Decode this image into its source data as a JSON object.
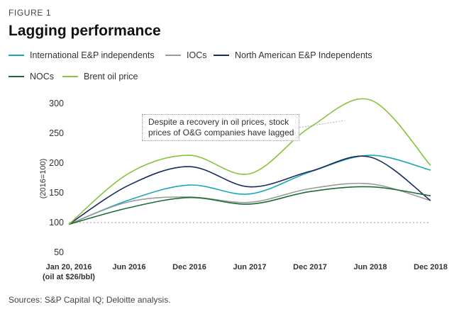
{
  "figure_label": "FIGURE 1",
  "source_text": "Sources: S&P Capital IQ; Deloitte analysis.",
  "annotation": {
    "line1": "Despite a recovery in oil prices, stock",
    "line2": "prices of O&G companies have lagged"
  },
  "colors": {
    "intl_ep": "#1ba8b0",
    "iocs": "#9a9a9a",
    "na_ep": "#1b2a5c",
    "nocs": "#1d6b3a",
    "brent": "#86c440"
  },
  "chart_data": {
    "type": "line",
    "title": "Lagging performance",
    "xlabel": "",
    "ylabel": "(2016=100)",
    "ylim": [
      50,
      300
    ],
    "yticks": [
      50,
      100,
      150,
      200,
      250,
      300
    ],
    "baseline": 100,
    "categories": [
      {
        "line1": "Jan 20, 2016",
        "line2": "(oil at $26/bbl)"
      },
      {
        "line1": "Jun 2016",
        "line2": ""
      },
      {
        "line1": "Dec 2016",
        "line2": ""
      },
      {
        "line1": "Jun 2017",
        "line2": ""
      },
      {
        "line1": "Dec 2017",
        "line2": ""
      },
      {
        "line1": "Jun 2018",
        "line2": ""
      },
      {
        "line1": "Dec 2018",
        "line2": ""
      }
    ],
    "series": [
      {
        "name": "International E&P independents",
        "color_key": "intl_ep",
        "values": [
          97,
          138,
          163,
          148,
          185,
          213,
          188
        ]
      },
      {
        "name": "IOCs",
        "color_key": "iocs",
        "values": [
          97,
          135,
          143,
          134,
          157,
          165,
          137
        ]
      },
      {
        "name": "North American E&P Independents",
        "color_key": "na_ep",
        "values": [
          97,
          163,
          194,
          160,
          186,
          210,
          137
        ]
      },
      {
        "name": "NOCs",
        "color_key": "nocs",
        "values": [
          97,
          125,
          142,
          131,
          152,
          160,
          145
        ]
      },
      {
        "name": "Brent oil price",
        "color_key": "brent",
        "values": [
          97,
          183,
          213,
          182,
          260,
          306,
          196
        ]
      }
    ]
  }
}
